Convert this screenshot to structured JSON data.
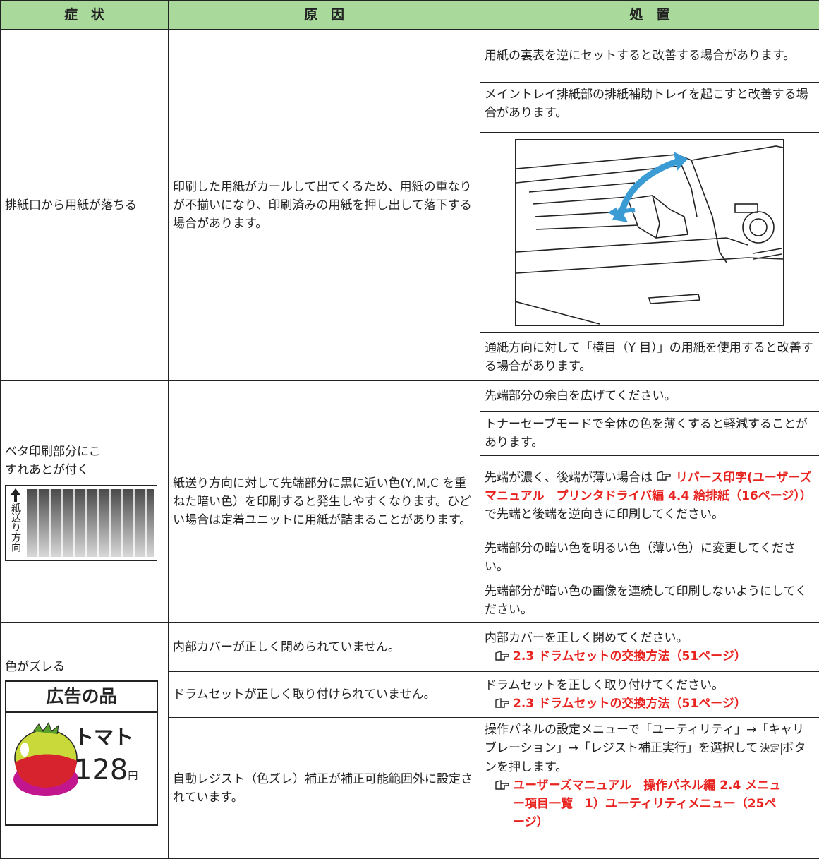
{
  "table": {
    "header": [
      "症　状",
      "原　因",
      "処　置"
    ],
    "rows": [
      {
        "symptom": "排紙口から用紙が落ちる",
        "cause": "印刷した用紙がカールして出てくるため、用紙の重なりが不揃いになり、印刷済みの用紙を押し出して落下する場合があります。",
        "remedies": [
          "用紙の裏表を逆にセットすると改善する場合があります。",
          "メイントレイ排紙部の排紙補助トレイを起こすと改善する場合があります。",
          "通紙方向に対して「横目（Y 目）」の用紙を使用すると改善する場合があります。"
        ]
      },
      {
        "symptom": "ベタ印刷部分にこすれあとが付く",
        "diagram_label": "紙送り方向",
        "cause": "紙送り方向に対して先端部分に黒に近い色(Y,M,C を重ねた暗い色）を印刷すると発生しやすくなります。ひどい場合は定着ユニットに用紙が詰まることがあります。",
        "remedies": [
          "先端部分の余白を広げてください。",
          "トナーセーブモードで全体の色を薄くすると軽減することがあります。",
          {
            "before": "先端が濃く、後端が薄い場合は",
            "ref": "リバース印字(ユーザーズマニュアル　プリンタドライバ編 4.4 給排紙（16ページ））",
            "after": "で先端と後端を逆向きに印刷してください。"
          },
          "先端部分の暗い色を明るい色（薄い色）に変更してください。",
          "先端部分が暗い色の画像を連続して印刷しないようにしてください。"
        ]
      },
      {
        "symptom": "色がズレる",
        "badge": {
          "title": "広告の品",
          "item": "トマト",
          "price": "128",
          "unit": "円"
        },
        "pairs": [
          {
            "cause": "内部カバーが正しく閉められていません。",
            "remedy": "内部カバーを正しく閉めてください。",
            "ref": "2.3 ドラムセットの交換方法（51ページ）"
          },
          {
            "cause": "ドラムセットが正しく取り付けられていません。",
            "remedy": "ドラムセットを正しく取り付けてください。",
            "ref": "2.3 ドラムセットの交換方法（51ページ）"
          },
          {
            "cause": "自動レジスト（色ズレ）補正が補正可能範囲外に設定されています。",
            "remedy_before": "操作パネルの設定メニューで「ユーティリティ」→「キャリブレーション」→「レジスト補正実行」を選択して",
            "key": "決定",
            "remedy_after": "ボタンを押します。",
            "ref": "ユーザーズマニュアル　操作パネル編 2.4 メニュー項目一覧　1）ユーティリティメニュー（25ページ）"
          }
        ]
      }
    ]
  }
}
